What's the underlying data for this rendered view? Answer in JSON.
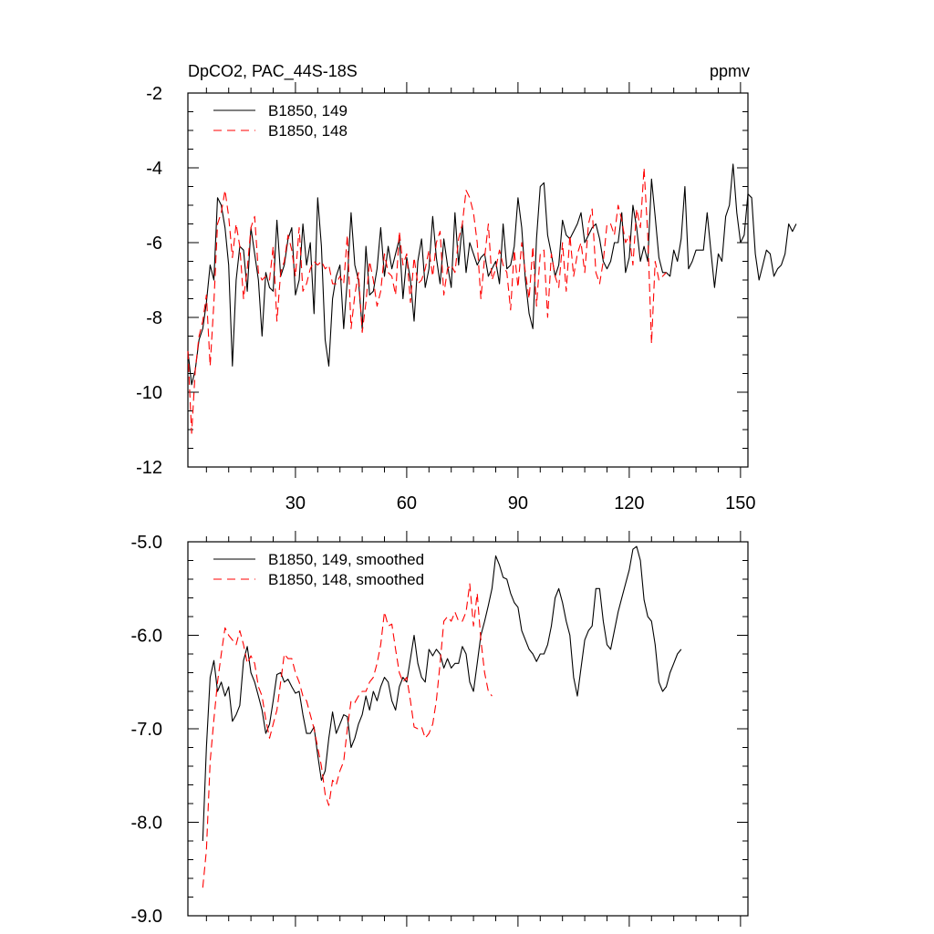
{
  "chart_data": [
    {
      "type": "line",
      "title": "DpCO2, PAC_44S-18S",
      "units": "ppmv",
      "xlim": [
        1,
        152
      ],
      "ylim": [
        -12,
        -2
      ],
      "xticks": [
        30,
        60,
        90,
        120,
        150
      ],
      "xtick_labels": [
        "30",
        "60",
        "90",
        "120",
        "150"
      ],
      "yticks": [
        -2,
        -4,
        -6,
        -8,
        -10,
        -12
      ],
      "ytick_labels": [
        "-2",
        "-4",
        "-6",
        "-8",
        "-10",
        "-12"
      ],
      "legend_position": "top-left",
      "grid": false,
      "series": [
        {
          "name": "B1850, 149",
          "color": "#000000",
          "dash": "solid",
          "x_start": 1,
          "values": [
            -8.9,
            -9.8,
            -9.4,
            -8.6,
            -8.3,
            -7.6,
            -6.6,
            -7.0,
            -4.8,
            -5.0,
            -5.6,
            -6.6,
            -9.3,
            -7.0,
            -6.1,
            -6.2,
            -7.3,
            -5.6,
            -6.3,
            -7.0,
            -8.5,
            -6.8,
            -7.2,
            -7.3,
            -5.4,
            -6.9,
            -6.6,
            -5.9,
            -5.6,
            -7.4,
            -7.0,
            -5.5,
            -6.6,
            -6.0,
            -7.9,
            -4.8,
            -6.1,
            -8.6,
            -9.3,
            -7.5,
            -6.9,
            -6.6,
            -8.3,
            -7.0,
            -5.2,
            -6.6,
            -7.0,
            -8.3,
            -6.1,
            -7.4,
            -7.3,
            -6.7,
            -5.6,
            -6.9,
            -6.1,
            -6.7,
            -6.3,
            -5.9,
            -7.5,
            -6.4,
            -7.0,
            -8.1,
            -6.5,
            -5.9,
            -7.2,
            -6.7,
            -5.3,
            -6.4,
            -7.1,
            -5.9,
            -6.6,
            -7.2,
            -5.2,
            -6.6,
            -5.5,
            -6.8,
            -6.0,
            -6.3,
            -6.6,
            -6.4,
            -6.3,
            -6.9,
            -6.7,
            -6.5,
            -7.1,
            -5.5,
            -6.7,
            -6.6,
            -6.1,
            -4.8,
            -5.6,
            -7.0,
            -7.9,
            -8.3,
            -5.9,
            -4.5,
            -4.4,
            -5.8,
            -6.3,
            -6.9,
            -6.6,
            -5.4,
            -5.8,
            -5.9,
            -5.7,
            -5.5,
            -5.2,
            -6.0,
            -5.8,
            -5.6,
            -5.5,
            -5.9,
            -6.5,
            -6.7,
            -6.5,
            -6.0,
            -6.0,
            -5.2,
            -6.8,
            -6.4,
            -5.0,
            -5.6,
            -6.5,
            -6.1,
            -6.5,
            -4.3,
            -5.3,
            -6.4,
            -6.8,
            -6.8,
            -6.9,
            -6.2,
            -6.5,
            -5.9,
            -4.5,
            -6.7,
            -6.5,
            -6.2,
            -6.2,
            -6.2,
            -5.2,
            -6.2,
            -7.2,
            -6.3,
            -6.5,
            -5.3,
            -5.0,
            -3.9,
            -5.2,
            -6.0,
            -5.8,
            -4.7,
            -4.8,
            -6.3,
            -7.0,
            -6.6,
            -6.2,
            -6.3,
            -6.9,
            -6.7,
            -6.6,
            -6.3,
            -5.5,
            -5.7,
            -5.5
          ]
        },
        {
          "name": "B1850, 148",
          "color": "#ff0000",
          "dash": "dashed",
          "x_start": 1,
          "values": [
            -8.9,
            -11.1,
            -9.4,
            -8.5,
            -8.1,
            -7.4,
            -9.3,
            -7.6,
            -5.5,
            -5.2,
            -4.6,
            -5.3,
            -6.4,
            -5.5,
            -6.1,
            -7.5,
            -6.7,
            -5.6,
            -5.3,
            -6.8,
            -7.0,
            -6.9,
            -7.0,
            -6.1,
            -8.1,
            -6.8,
            -6.5,
            -5.8,
            -6.2,
            -6.9,
            -5.6,
            -7.3,
            -7.1,
            -6.7,
            -6.5,
            -6.6,
            -6.5,
            -6.7,
            -6.6,
            -7.1,
            -7.1,
            -6.9,
            -7.1,
            -5.8,
            -8.3,
            -7.4,
            -6.8,
            -8.4,
            -7.6,
            -6.5,
            -7.0,
            -7.7,
            -7.3,
            -6.3,
            -6.8,
            -6.9,
            -7.4,
            -5.7,
            -6.6,
            -6.3,
            -7.6,
            -6.4,
            -7.1,
            -7.0,
            -6.7,
            -6.2,
            -6.9,
            -6.0,
            -5.7,
            -7.4,
            -6.7,
            -6.6,
            -6.8,
            -5.9,
            -5.5,
            -4.6,
            -4.8,
            -5.2,
            -6.0,
            -7.5,
            -6.4,
            -5.5,
            -7.0,
            -6.7,
            -6.2,
            -6.6,
            -6.8,
            -7.8,
            -6.2,
            -7.2,
            -6.0,
            -6.8,
            -7.5,
            -6.1,
            -7.7,
            -6.3,
            -6.2,
            -8.0,
            -6.3,
            -6.9,
            -7.2,
            -6.0,
            -7.3,
            -5.8,
            -6.9,
            -6.3,
            -6.0,
            -6.8,
            -5.5,
            -5.1,
            -6.8,
            -7.1,
            -6.5,
            -5.5,
            -5.5,
            -5.8,
            -5.0,
            -5.4,
            -6.0,
            -5.8,
            -6.6,
            -5.1,
            -5.6,
            -4.0,
            -5.8,
            -8.7,
            -6.5,
            -7.0,
            -6.9,
            -6.8
          ]
        }
      ]
    },
    {
      "type": "line",
      "xlim": [
        1,
        152
      ],
      "ylim": [
        -9.0,
        -5.0
      ],
      "xticks": [
        30,
        60,
        90,
        120,
        150
      ],
      "yticks": [
        -5.0,
        -6.0,
        -7.0,
        -8.0,
        -9.0
      ],
      "ytick_labels": [
        "-5.0",
        "-6.0",
        "-7.0",
        "-8.0",
        "-9.0"
      ],
      "legend_position": "top-left",
      "grid": false,
      "series": [
        {
          "name": "B1850, 149, smoothed",
          "color": "#000000",
          "dash": "solid",
          "x_start": 5,
          "values": [
            -8.2,
            -7.2,
            -6.45,
            -6.27,
            -6.6,
            -6.5,
            -6.65,
            -6.55,
            -6.92,
            -6.85,
            -6.75,
            -6.27,
            -6.12,
            -6.4,
            -6.5,
            -6.65,
            -6.8,
            -7.05,
            -6.95,
            -6.7,
            -6.42,
            -6.4,
            -6.5,
            -6.47,
            -6.55,
            -6.62,
            -6.6,
            -6.85,
            -7.05,
            -7.05,
            -6.98,
            -7.28,
            -7.55,
            -7.45,
            -7.1,
            -6.82,
            -7.05,
            -6.95,
            -6.85,
            -6.87,
            -7.2,
            -7.1,
            -6.95,
            -6.85,
            -6.65,
            -6.8,
            -6.6,
            -6.7,
            -6.55,
            -6.45,
            -6.5,
            -6.7,
            -6.8,
            -6.55,
            -6.45,
            -6.5,
            -6.25,
            -6.0,
            -6.3,
            -6.45,
            -6.5,
            -6.15,
            -6.22,
            -6.15,
            -6.2,
            -6.35,
            -6.25,
            -6.35,
            -6.3,
            -6.3,
            -6.12,
            -6.2,
            -6.5,
            -6.6,
            -6.3,
            -6.0,
            -5.85,
            -5.68,
            -5.5,
            -5.15,
            -5.25,
            -5.38,
            -5.4,
            -5.55,
            -5.65,
            -5.7,
            -5.95,
            -6.05,
            -6.15,
            -6.2,
            -6.28,
            -6.2,
            -6.2,
            -6.1,
            -5.9,
            -5.6,
            -5.5,
            -5.65,
            -5.85,
            -6.0,
            -6.45,
            -6.65,
            -6.35,
            -6.05,
            -5.95,
            -5.9,
            -5.5,
            -5.5,
            -5.85,
            -6.1,
            -6.15,
            -5.95,
            -5.75,
            -5.6,
            -5.45,
            -5.3,
            -5.08,
            -5.05,
            -5.2,
            -5.62,
            -5.8,
            -5.85,
            -6.1,
            -6.5,
            -6.6,
            -6.55,
            -6.4,
            -6.3,
            -6.2,
            -6.15
          ]
        },
        {
          "name": "B1850, 148, smoothed",
          "color": "#ff0000",
          "dash": "dashed",
          "x_start": 5,
          "values": [
            -8.7,
            -8.3,
            -7.35,
            -6.9,
            -6.5,
            -6.2,
            -5.92,
            -6.0,
            -6.05,
            -6.1,
            -5.95,
            -6.1,
            -6.3,
            -6.22,
            -6.3,
            -6.55,
            -6.65,
            -6.9,
            -7.1,
            -6.95,
            -6.8,
            -6.5,
            -6.2,
            -6.25,
            -6.25,
            -6.4,
            -6.5,
            -6.65,
            -6.7,
            -6.85,
            -7.0,
            -7.2,
            -7.4,
            -7.7,
            -7.82,
            -7.55,
            -7.6,
            -7.45,
            -7.35,
            -7.0,
            -6.7,
            -6.72,
            -6.65,
            -6.6,
            -6.6,
            -6.5,
            -6.45,
            -6.3,
            -6.1,
            -5.75,
            -5.9,
            -5.88,
            -6.15,
            -6.4,
            -6.5,
            -6.45,
            -6.7,
            -6.98,
            -7.0,
            -6.98,
            -7.1,
            -7.05,
            -6.95,
            -6.7,
            -6.3,
            -5.85,
            -5.8,
            -5.85,
            -5.75,
            -5.85,
            -5.85,
            -5.75,
            -5.45,
            -5.9,
            -5.55,
            -6.05,
            -6.4,
            -6.6,
            -6.65
          ]
        }
      ]
    }
  ]
}
